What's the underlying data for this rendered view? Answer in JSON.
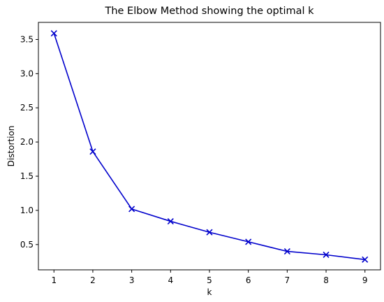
{
  "chart_data": {
    "type": "line",
    "title": "The Elbow Method showing the optimal k",
    "xlabel": "k",
    "ylabel": "Distortion",
    "x": [
      1,
      2,
      3,
      4,
      5,
      6,
      7,
      8,
      9
    ],
    "series": [
      {
        "values": [
          3.59,
          1.86,
          1.02,
          0.84,
          0.68,
          0.54,
          0.4,
          0.35,
          0.28
        ],
        "color": "#0000cc",
        "marker": "x"
      }
    ],
    "xticks": [
      "1",
      "2",
      "3",
      "4",
      "5",
      "6",
      "7",
      "8",
      "9"
    ],
    "yticks": [
      "0.5",
      "1.0",
      "1.5",
      "2.0",
      "2.5",
      "3.0",
      "3.5"
    ],
    "xlim": [
      0.6,
      9.4
    ],
    "ylim": [
      0.13,
      3.75
    ],
    "grid": false,
    "legend": false
  }
}
